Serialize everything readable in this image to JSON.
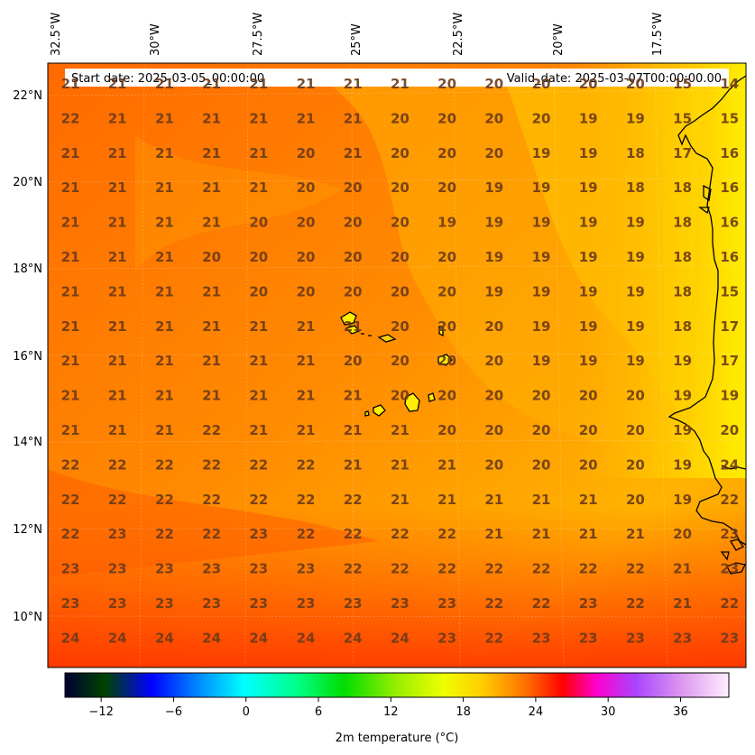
{
  "header": {
    "start_date": "Start date: 2025-03-05_00:00:00",
    "valid_date": "Valid_date: 2025-03-07T00:00:00.00"
  },
  "map": {
    "longitude_labels": [
      "32.5°W",
      "30°W",
      "27.5°W",
      "25°W",
      "22.5°W",
      "20°W",
      "17.5°W"
    ],
    "latitude_labels": [
      "22°N",
      "20°N",
      "18°N",
      "16°N",
      "14°N",
      "12°N",
      "10°N"
    ],
    "coastline_color": "#000000",
    "grid_values": [
      [
        21,
        21,
        21,
        21,
        21,
        21,
        21,
        21,
        20,
        20,
        20,
        20,
        20,
        15,
        14
      ],
      [
        22,
        21,
        21,
        21,
        21,
        21,
        21,
        20,
        20,
        20,
        20,
        19,
        19,
        15,
        15
      ],
      [
        21,
        21,
        21,
        21,
        21,
        20,
        21,
        20,
        20,
        20,
        19,
        19,
        18,
        17,
        16
      ],
      [
        21,
        21,
        21,
        21,
        21,
        20,
        20,
        20,
        20,
        19,
        19,
        19,
        18,
        18,
        16
      ],
      [
        21,
        21,
        21,
        21,
        20,
        20,
        20,
        20,
        19,
        19,
        19,
        19,
        19,
        18,
        16
      ],
      [
        21,
        21,
        21,
        20,
        20,
        20,
        20,
        20,
        20,
        19,
        19,
        19,
        19,
        18,
        16
      ],
      [
        21,
        21,
        21,
        21,
        20,
        20,
        20,
        20,
        20,
        19,
        19,
        19,
        19,
        18,
        15
      ],
      [
        21,
        21,
        21,
        21,
        21,
        21,
        21,
        20,
        20,
        20,
        19,
        19,
        19,
        18,
        17
      ],
      [
        21,
        21,
        21,
        21,
        21,
        21,
        20,
        20,
        20,
        20,
        19,
        19,
        19,
        19,
        17
      ],
      [
        21,
        21,
        21,
        21,
        21,
        21,
        21,
        20,
        20,
        20,
        20,
        20,
        20,
        19,
        19
      ],
      [
        21,
        21,
        21,
        22,
        21,
        21,
        21,
        21,
        20,
        20,
        20,
        20,
        20,
        19,
        20
      ],
      [
        22,
        22,
        22,
        22,
        22,
        22,
        21,
        21,
        21,
        20,
        20,
        20,
        20,
        19,
        24
      ],
      [
        22,
        22,
        22,
        22,
        22,
        22,
        22,
        21,
        21,
        21,
        21,
        21,
        20,
        19,
        22
      ],
      [
        22,
        23,
        22,
        22,
        23,
        22,
        22,
        22,
        22,
        21,
        21,
        21,
        21,
        20,
        23
      ],
      [
        23,
        23,
        23,
        23,
        23,
        23,
        22,
        22,
        22,
        22,
        22,
        22,
        22,
        21,
        23
      ],
      [
        23,
        23,
        23,
        23,
        23,
        23,
        23,
        23,
        23,
        22,
        22,
        23,
        22,
        21,
        22
      ],
      [
        24,
        24,
        24,
        24,
        24,
        24,
        24,
        24,
        23,
        22,
        23,
        23,
        23,
        23,
        23
      ]
    ]
  },
  "colorbar": {
    "ticks": [
      "−12",
      "−6",
      "0",
      "6",
      "12",
      "18",
      "24",
      "30",
      "36"
    ],
    "label": "2m temperature (°C)",
    "range": [
      -15,
      40
    ]
  }
}
